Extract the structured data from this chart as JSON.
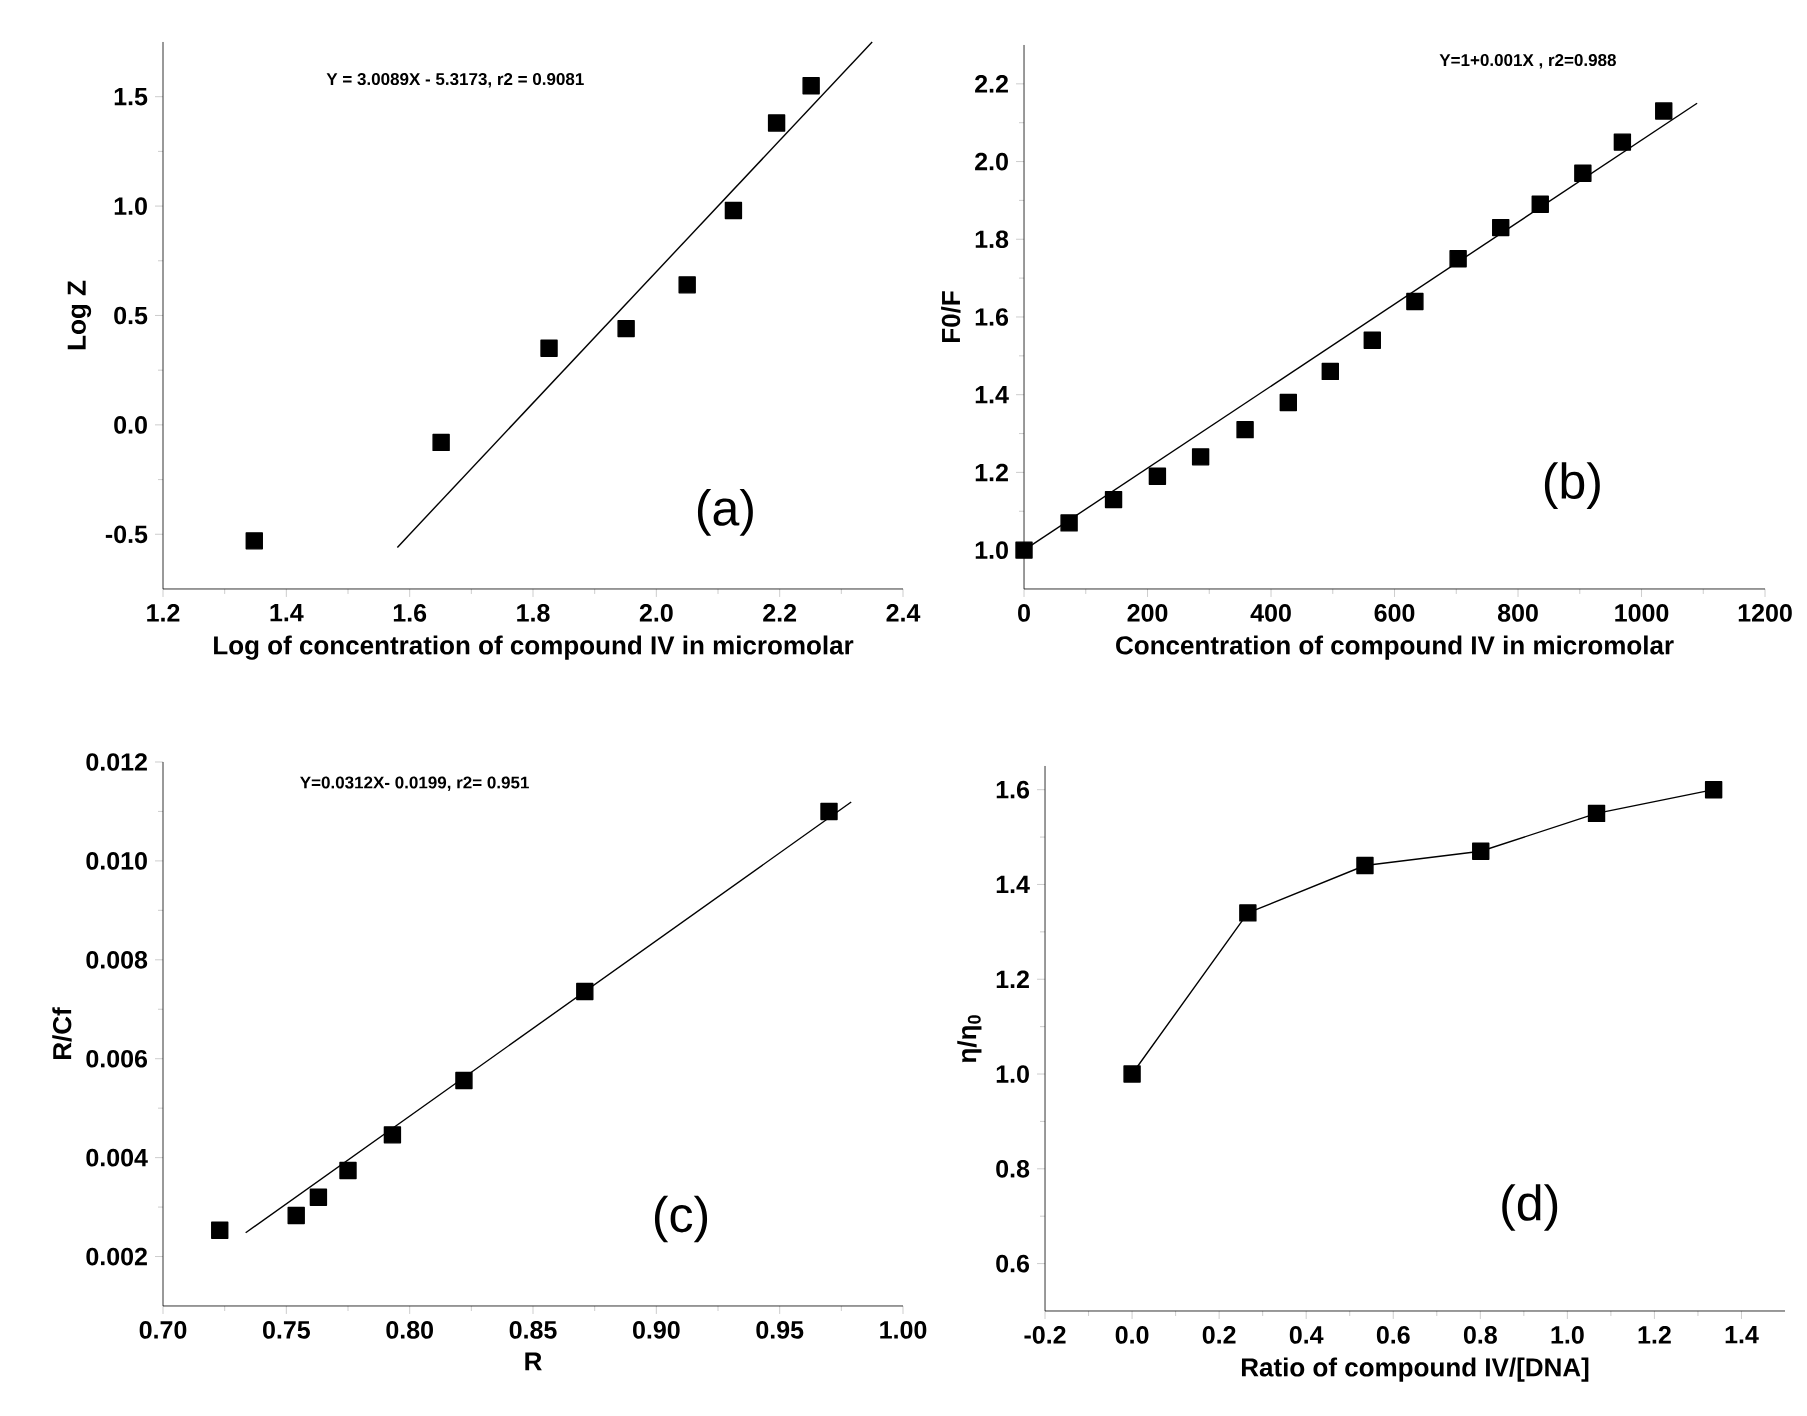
{
  "chart_data": [
    {
      "type": "scatter",
      "xlabel": "Log of concentration of compound IV in micromolar",
      "ylabel": "Log Z",
      "xlim": [
        1.2,
        2.4
      ],
      "ylim": [
        -0.75,
        1.75
      ],
      "xticks": [
        1.2,
        1.4,
        1.6,
        1.8,
        {
          "value": 2.0,
          "label": "2.0"
        },
        2.2,
        2.4
      ],
      "yticks": [
        -0.5,
        {
          "value": 0.0,
          "label": "0.0"
        },
        0.5,
        {
          "value": 1.0,
          "label": "1.0"
        },
        1.5
      ],
      "annotations": [
        "Y = 3.0089X - 5.3173, r2 = 0.9081",
        "(a)"
      ],
      "series": [
        {
          "marker": "square",
          "color": "#000000",
          "x": [
            1.348,
            1.651,
            1.826,
            1.951,
            2.05,
            2.125,
            2.195,
            2.251
          ],
          "values": [
            -0.53,
            -0.08,
            0.35,
            0.44,
            0.64,
            0.98,
            1.38,
            1.55
          ]
        },
        {
          "type": "line",
          "marker": "none",
          "color": "#000000",
          "x": [
            1.58,
            2.35
          ],
          "values": [
            -0.56,
            1.75
          ]
        }
      ]
    },
    {
      "type": "scatter",
      "xlabel": "Concentration of compound IV in micromolar",
      "ylabel": "F0/F",
      "xlim": [
        0,
        1200
      ],
      "ylim": [
        0.9,
        2.3
      ],
      "xticks": [
        0,
        200,
        400,
        600,
        800,
        1000,
        1200
      ],
      "yticks": [
        {
          "value": 1.0,
          "label": "1.0"
        },
        1.2,
        1.4,
        1.6,
        1.8,
        {
          "value": 2.0,
          "label": "2.0"
        },
        2.2
      ],
      "annotations": [
        "Y=1+0.001X , r2=0.988",
        "(b)"
      ],
      "series": [
        {
          "marker": "square",
          "color": "#000000",
          "x": [
            0,
            73,
            145,
            216,
            286,
            358,
            428,
            496,
            564,
            633,
            703,
            772,
            836,
            905,
            969,
            1036
          ],
          "values": [
            1.0,
            1.07,
            1.13,
            1.19,
            1.24,
            1.31,
            1.38,
            1.46,
            1.54,
            1.64,
            1.75,
            1.83,
            1.89,
            1.97,
            2.05,
            2.13
          ]
        },
        {
          "type": "line",
          "marker": "none",
          "color": "#000000",
          "x": [
            0,
            1090
          ],
          "values": [
            1.0,
            2.15
          ]
        }
      ]
    },
    {
      "type": "scatter",
      "xlabel": "R",
      "ylabel": "R/Cf",
      "xlim": [
        0.7,
        1.0
      ],
      "ylim": [
        0.001,
        0.012
      ],
      "xticks": [
        {
          "value": 0.7,
          "label": "0.70"
        },
        0.75,
        {
          "value": 0.8,
          "label": "0.80"
        },
        0.85,
        {
          "value": 0.9,
          "label": "0.90"
        },
        0.95,
        {
          "value": 1.0,
          "label": "1.00"
        }
      ],
      "yticks": [
        0.002,
        0.004,
        0.006,
        0.008,
        {
          "value": 0.01,
          "label": "0.010"
        },
        0.012
      ],
      "annotations": [
        "Y=0.0312X- 0.0199, r2= 0.951",
        "(c)"
      ],
      "series": [
        {
          "marker": "square",
          "color": "#000000",
          "x": [
            0.723,
            0.754,
            0.763,
            0.775,
            0.793,
            0.822,
            0.871,
            0.97
          ],
          "values": [
            0.00253,
            0.00283,
            0.0032,
            0.00374,
            0.00446,
            0.00556,
            0.00736,
            0.011
          ]
        },
        {
          "type": "line",
          "marker": "none",
          "color": "#000000",
          "x": [
            0.7335,
            0.979
          ],
          "values": [
            0.00248,
            0.01119
          ]
        }
      ]
    },
    {
      "type": "line",
      "xlabel": "Ratio of compound IV/[DNA]",
      "ylabel": "η/η$_{0}$",
      "xlim": [
        -0.2,
        1.5
      ],
      "ylim": [
        0.5,
        1.65
      ],
      "xticks": [
        -0.2,
        {
          "value": 0.0,
          "label": "0.0"
        },
        0.2,
        0.4,
        0.6,
        0.8,
        {
          "value": 1.0,
          "label": "1.0"
        },
        1.2,
        1.4
      ],
      "yticks": [
        0.6,
        0.8,
        {
          "value": 1.0,
          "label": "1.0"
        },
        1.2,
        1.4,
        1.6
      ],
      "annotations": [
        "(d)"
      ],
      "series": [
        {
          "marker": "square",
          "color": "#000000",
          "x": [
            0,
            0.266,
            0.535,
            0.801,
            1.067,
            1.336
          ],
          "values": [
            1.0,
            1.34,
            1.44,
            1.47,
            1.55,
            1.6
          ]
        }
      ]
    }
  ]
}
